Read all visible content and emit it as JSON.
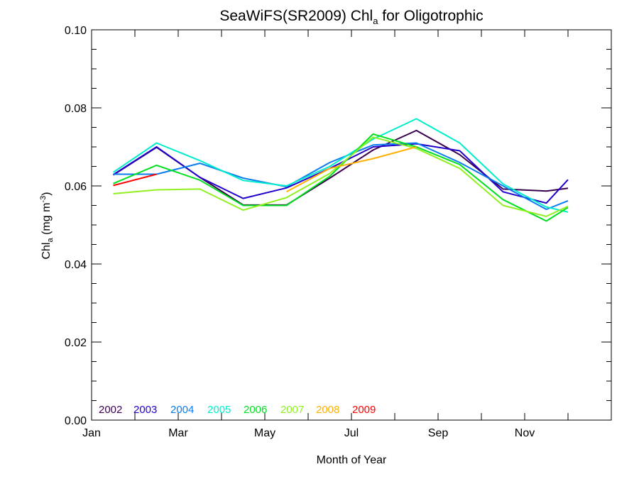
{
  "chart_data": {
    "type": "line",
    "title": "SeaWiFS(SR2009) Chl",
    "title_sub": "a",
    "title_suffix": " for Oligotrophic",
    "xlabel": "Month of Year",
    "ylabel_main": "Chl",
    "ylabel_sub": "a",
    "ylabel_units": " (mg m",
    "ylabel_sup": "-3",
    "ylabel_close": ")",
    "x_tick_labels": [
      "Jan",
      "Mar",
      "May",
      "Jul",
      "Sep",
      "Nov"
    ],
    "x_tick_values": [
      1,
      3,
      5,
      7,
      9,
      11
    ],
    "xlim": [
      1,
      13
    ],
    "y_tick_labels": [
      "0.00",
      "0.02",
      "0.04",
      "0.06",
      "0.08",
      "0.10"
    ],
    "y_tick_values": [
      0,
      0.02,
      0.04,
      0.06,
      0.08,
      0.1
    ],
    "ylim": [
      0,
      0.1
    ],
    "x": [
      1.5,
      2.5,
      3.5,
      4.5,
      5.5,
      6.5,
      7.5,
      8.5,
      9.5,
      10.5,
      11.5,
      12.0
    ],
    "series": [
      {
        "name": "2002",
        "color": "#3a0050",
        "values": [
          0.0628,
          0.0699,
          0.0622,
          0.0551,
          0.0551,
          0.062,
          0.0692,
          0.0742,
          0.068,
          0.0592,
          0.0587,
          0.0594
        ]
      },
      {
        "name": "2003",
        "color": "#2200cc",
        "values": [
          0.0629,
          0.07,
          0.0622,
          0.0568,
          0.0595,
          0.0645,
          0.07,
          0.0708,
          0.069,
          0.0585,
          0.0556,
          0.0616
        ]
      },
      {
        "name": "2004",
        "color": "#0a7cf0",
        "values": [
          0.063,
          0.063,
          0.0658,
          0.062,
          0.0598,
          0.066,
          0.0705,
          0.071,
          0.066,
          0.06,
          0.054,
          0.0562
        ]
      },
      {
        "name": "2005",
        "color": "#00eecc",
        "values": [
          0.0635,
          0.071,
          0.0665,
          0.0614,
          0.06,
          0.065,
          0.072,
          0.0772,
          0.071,
          0.0605,
          0.0546,
          0.0533
        ]
      },
      {
        "name": "2006",
        "color": "#00e020",
        "values": [
          0.0606,
          0.0653,
          0.0615,
          0.055,
          0.055,
          0.0625,
          0.0733,
          0.07,
          0.0655,
          0.0565,
          0.051,
          0.0545
        ]
      },
      {
        "name": "2007",
        "color": "#90f020",
        "values": [
          0.058,
          0.059,
          0.0592,
          0.0538,
          0.057,
          0.0632,
          0.0725,
          0.0696,
          0.0645,
          0.055,
          0.0522,
          0.0548
        ]
      },
      {
        "name": "2008",
        "color": "#ffb000",
        "values": [
          null,
          null,
          null,
          null,
          0.0585,
          0.0645,
          0.067,
          0.07,
          null,
          null,
          null,
          null
        ]
      },
      {
        "name": "2009",
        "color": "#ff0000",
        "values": [
          0.0601,
          0.063,
          null,
          null,
          null,
          null,
          null,
          null,
          null,
          null,
          null,
          null
        ]
      }
    ],
    "grid": false,
    "legend_position": "bottom-left inside plot"
  }
}
